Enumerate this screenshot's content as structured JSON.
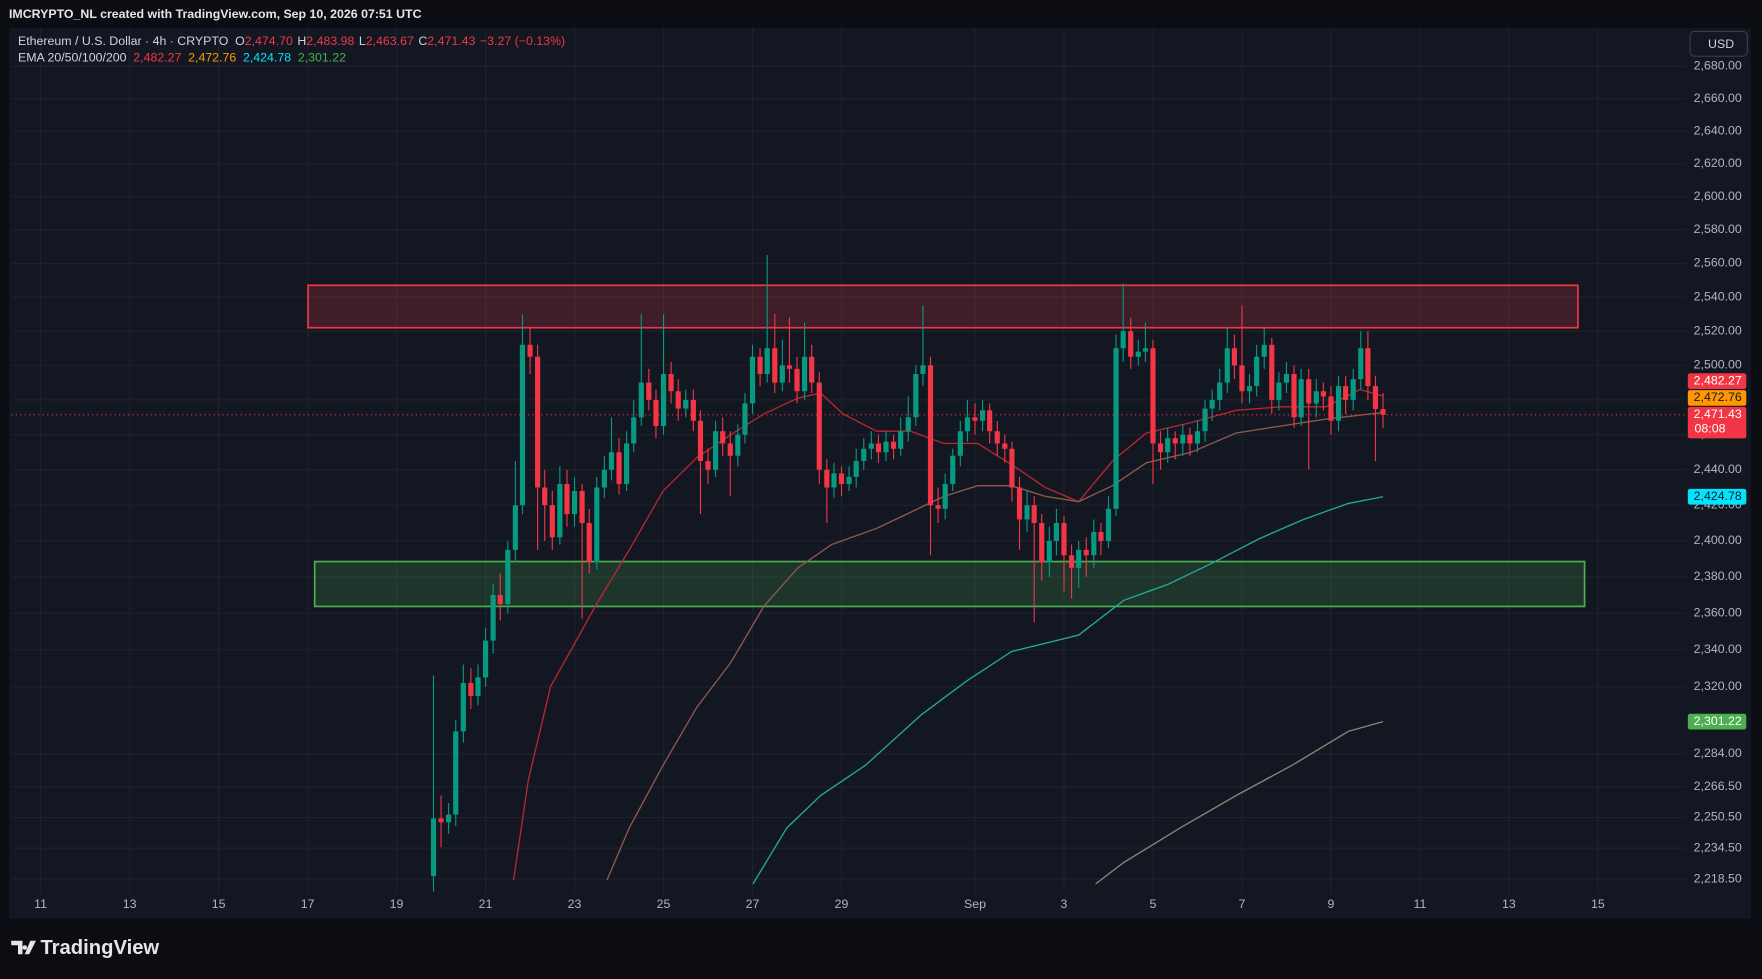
{
  "chart_data": {
    "type": "candlestick",
    "title": "IMCRYPTO_NL created with TradingView.com, Sep 10, 2026 07:51 UTC",
    "symbol": "Ethereum / U.S. Dollar · 4h · CRYPTO",
    "ohlc_letters": [
      "O",
      "H",
      "L",
      "C"
    ],
    "ohlc_labels": [
      "2,474.70",
      "2,483.98",
      "2,463.67",
      "2,471.43"
    ],
    "change_label": "−3.27 (−0.13%)",
    "ema_legend": "EMA 20/50/100/200",
    "currency": "USD",
    "brand": "TradingView",
    "last_price_label": "2,471.43",
    "countdown": "08:08",
    "up_color": "#089981",
    "down_color": "#f23645",
    "log_scale": true,
    "grid": true,
    "xlim": [
      10.34,
      47.97
    ],
    "ylim": [
      2211,
      2704
    ],
    "xticks": [
      11,
      13,
      15,
      17,
      19,
      21,
      23,
      25,
      27,
      29,
      {
        "value": 32,
        "label": "Sep"
      },
      {
        "value": 34,
        "label": "3"
      },
      {
        "value": 36,
        "label": "5"
      },
      {
        "value": 38,
        "label": "7"
      },
      {
        "value": 40,
        "label": "9"
      },
      {
        "value": 42,
        "label": "11"
      },
      {
        "value": 44,
        "label": "13"
      },
      {
        "value": 46,
        "label": "15"
      }
    ],
    "yticks": [
      {
        "value": 2680,
        "label": "2,680.00"
      },
      {
        "value": 2660,
        "label": "2,660.00"
      },
      {
        "value": 2640,
        "label": "2,640.00"
      },
      {
        "value": 2620,
        "label": "2,620.00"
      },
      {
        "value": 2600,
        "label": "2,600.00"
      },
      {
        "value": 2580,
        "label": "2,580.00"
      },
      {
        "value": 2560,
        "label": "2,560.00"
      },
      {
        "value": 2540,
        "label": "2,540.00"
      },
      {
        "value": 2520,
        "label": "2,520.00"
      },
      {
        "value": 2500,
        "label": "2,500.00"
      },
      {
        "value": 2480,
        "label": "2,480.00"
      },
      {
        "value": 2460,
        "label": "2,460.00"
      },
      {
        "value": 2440,
        "label": "2,440.00"
      },
      {
        "value": 2420,
        "label": "2,420.00"
      },
      {
        "value": 2400,
        "label": "2,400.00"
      },
      {
        "value": 2380,
        "label": "2,380.00"
      },
      {
        "value": 2360,
        "label": "2,360.00"
      },
      {
        "value": 2340,
        "label": "2,340.00"
      },
      {
        "value": 2320,
        "label": "2,320.00"
      },
      {
        "value": 2284,
        "label": "2,284.00"
      },
      {
        "value": 2266.5,
        "label": "2,266.50"
      },
      {
        "value": 2250.5,
        "label": "2,250.50"
      },
      {
        "value": 2234.5,
        "label": "2,234.50"
      },
      {
        "value": 2218.5,
        "label": "2,218.50"
      }
    ],
    "x": [
      19.83,
      20,
      20.17,
      20.33,
      20.5,
      20.67,
      20.83,
      21,
      21.17,
      21.33,
      21.5,
      21.67,
      21.83,
      22,
      22.17,
      22.33,
      22.5,
      22.67,
      22.83,
      23,
      23.17,
      23.33,
      23.5,
      23.67,
      23.83,
      24,
      24.17,
      24.33,
      24.5,
      24.67,
      24.83,
      25,
      25.17,
      25.33,
      25.5,
      25.67,
      25.83,
      26,
      26.17,
      26.33,
      26.5,
      26.67,
      26.83,
      27,
      27.17,
      27.33,
      27.5,
      27.67,
      27.83,
      28,
      28.17,
      28.33,
      28.5,
      28.67,
      28.83,
      29,
      29.17,
      29.33,
      29.5,
      29.67,
      29.83,
      30,
      30.17,
      30.33,
      30.5,
      30.67,
      30.83,
      31,
      31.17,
      31.33,
      31.5,
      31.67,
      31.83,
      32,
      32.17,
      32.33,
      32.5,
      32.67,
      32.83,
      33,
      33.17,
      33.33,
      33.5,
      33.67,
      33.83,
      34,
      34.17,
      34.33,
      34.5,
      34.67,
      34.83,
      35,
      35.17,
      35.33,
      35.5,
      35.67,
      35.83,
      36,
      36.17,
      36.33,
      36.5,
      36.67,
      36.83,
      37,
      37.17,
      37.33,
      37.5,
      37.67,
      37.83,
      38,
      38.17,
      38.33,
      38.5,
      38.67,
      38.83,
      39,
      39.17,
      39.33,
      39.5,
      39.67,
      39.83,
      40,
      40.17,
      40.33,
      40.5,
      40.67,
      40.83,
      41,
      41.17
    ],
    "open": [
      2220,
      2250,
      2248,
      2252,
      2296,
      2322,
      2315,
      2325,
      2345,
      2370,
      2365,
      2395,
      2420,
      2512,
      2505,
      2430,
      2420,
      2402,
      2432,
      2415,
      2428,
      2410,
      2388,
      2430,
      2440,
      2450,
      2432,
      2455,
      2470,
      2490,
      2480,
      2465,
      2495,
      2485,
      2475,
      2480,
      2468,
      2445,
      2440,
      2462,
      2455,
      2448,
      2460,
      2478,
      2505,
      2495,
      2510,
      2490,
      2500,
      2498,
      2485,
      2505,
      2490,
      2440,
      2430,
      2438,
      2432,
      2436,
      2445,
      2452,
      2455,
      2450,
      2456,
      2452,
      2462,
      2470,
      2495,
      2500,
      2420,
      2418,
      2432,
      2448,
      2462,
      2470,
      2468,
      2474,
      2462,
      2455,
      2452,
      2430,
      2412,
      2420,
      2410,
      2388,
      2400,
      2410,
      2392,
      2385,
      2395,
      2392,
      2405,
      2400,
      2418,
      2510,
      2520,
      2505,
      2508,
      2510,
      2455,
      2450,
      2458,
      2455,
      2460,
      2455,
      2462,
      2475,
      2480,
      2490,
      2510,
      2500,
      2485,
      2488,
      2505,
      2512,
      2480,
      2490,
      2495,
      2470,
      2492,
      2478,
      2485,
      2482,
      2468,
      2488,
      2480,
      2492,
      2510,
      2488,
      2474.7
    ],
    "high": [
      2326,
      2262,
      2258,
      2302,
      2332,
      2330,
      2332,
      2352,
      2376,
      2382,
      2400,
      2445,
      2530,
      2522,
      2512,
      2440,
      2428,
      2442,
      2440,
      2436,
      2432,
      2418,
      2436,
      2448,
      2470,
      2458,
      2462,
      2480,
      2530,
      2498,
      2486,
      2530,
      2502,
      2492,
      2486,
      2486,
      2474,
      2452,
      2468,
      2470,
      2462,
      2466,
      2484,
      2512,
      2510,
      2565,
      2530,
      2515,
      2528,
      2505,
      2525,
      2512,
      2496,
      2446,
      2444,
      2442,
      2442,
      2452,
      2458,
      2462,
      2460,
      2462,
      2460,
      2470,
      2482,
      2500,
      2535,
      2505,
      2430,
      2438,
      2452,
      2468,
      2480,
      2478,
      2480,
      2478,
      2468,
      2460,
      2456,
      2436,
      2428,
      2425,
      2415,
      2408,
      2418,
      2414,
      2398,
      2400,
      2402,
      2412,
      2410,
      2425,
      2518,
      2548,
      2528,
      2515,
      2525,
      2515,
      2462,
      2464,
      2462,
      2466,
      2464,
      2468,
      2480,
      2486,
      2498,
      2522,
      2518,
      2535,
      2495,
      2512,
      2522,
      2516,
      2496,
      2502,
      2500,
      2498,
      2498,
      2492,
      2490,
      2488,
      2494,
      2494,
      2498,
      2520,
      2520,
      2494,
      2483.98
    ],
    "low": [
      2212,
      2235,
      2242,
      2246,
      2290,
      2308,
      2310,
      2320,
      2338,
      2356,
      2360,
      2388,
      2415,
      2495,
      2395,
      2400,
      2395,
      2398,
      2408,
      2408,
      2357,
      2382,
      2384,
      2424,
      2434,
      2426,
      2428,
      2450,
      2465,
      2474,
      2458,
      2460,
      2478,
      2468,
      2470,
      2462,
      2415,
      2432,
      2436,
      2448,
      2425,
      2442,
      2455,
      2472,
      2488,
      2490,
      2484,
      2485,
      2490,
      2478,
      2480,
      2484,
      2432,
      2410,
      2424,
      2425,
      2428,
      2430,
      2440,
      2446,
      2444,
      2445,
      2446,
      2448,
      2456,
      2465,
      2488,
      2392,
      2410,
      2412,
      2428,
      2442,
      2456,
      2460,
      2462,
      2455,
      2448,
      2444,
      2422,
      2395,
      2405,
      2355,
      2378,
      2380,
      2392,
      2372,
      2368,
      2374,
      2380,
      2385,
      2392,
      2396,
      2414,
      2502,
      2498,
      2500,
      2502,
      2432,
      2440,
      2444,
      2446,
      2448,
      2448,
      2450,
      2456,
      2468,
      2474,
      2484,
      2492,
      2478,
      2478,
      2482,
      2498,
      2472,
      2474,
      2484,
      2464,
      2465,
      2440,
      2470,
      2474,
      2460,
      2462,
      2472,
      2474,
      2486,
      2480,
      2445,
      2463.67
    ],
    "close": [
      2250,
      2248,
      2252,
      2296,
      2322,
      2315,
      2325,
      2345,
      2370,
      2365,
      2395,
      2420,
      2512,
      2505,
      2430,
      2420,
      2402,
      2432,
      2415,
      2428,
      2410,
      2388,
      2430,
      2440,
      2450,
      2432,
      2455,
      2470,
      2490,
      2480,
      2465,
      2495,
      2485,
      2475,
      2480,
      2468,
      2445,
      2440,
      2462,
      2455,
      2448,
      2460,
      2478,
      2505,
      2495,
      2510,
      2490,
      2500,
      2498,
      2485,
      2505,
      2490,
      2440,
      2430,
      2438,
      2432,
      2436,
      2445,
      2452,
      2455,
      2450,
      2456,
      2452,
      2462,
      2470,
      2495,
      2500,
      2420,
      2418,
      2432,
      2448,
      2462,
      2470,
      2468,
      2474,
      2462,
      2455,
      2452,
      2430,
      2412,
      2420,
      2410,
      2388,
      2400,
      2410,
      2392,
      2385,
      2395,
      2392,
      2405,
      2400,
      2418,
      2510,
      2520,
      2505,
      2508,
      2510,
      2455,
      2450,
      2458,
      2455,
      2460,
      2455,
      2462,
      2475,
      2480,
      2490,
      2510,
      2500,
      2485,
      2488,
      2505,
      2512,
      2480,
      2490,
      2495,
      2470,
      2492,
      2478,
      2485,
      2482,
      2468,
      2488,
      2480,
      2492,
      2510,
      2488,
      2474.7,
      2471.43
    ],
    "series": [
      {
        "color": "#b7262f",
        "label_color": "#f23645",
        "last_label": "2,482.27",
        "x": [
          21.63,
          21.96,
          22.46,
          22.97,
          23.47,
          24.23,
          24.99,
          25.75,
          26.51,
          27.26,
          28.02,
          28.53,
          29.03,
          29.79,
          30.55,
          31.3,
          32.06,
          32.82,
          33.58,
          34.33,
          35.09,
          35.85,
          36.86,
          37.87,
          38.88,
          39.89,
          40.65,
          41.17
        ],
        "values": [
          2218,
          2270,
          2320,
          2342,
          2364,
          2395,
          2428,
          2447,
          2460,
          2472,
          2481,
          2484,
          2472,
          2462,
          2462,
          2455,
          2455,
          2443,
          2430,
          2422,
          2445,
          2461,
          2467,
          2474,
          2476,
          2476,
          2486,
          2482.27
        ]
      },
      {
        "color": "#8d5a4c",
        "label_color": "#ff9800",
        "last_label": "2,472.76",
        "x": [
          23.73,
          24.23,
          24.99,
          25.75,
          26.51,
          27.26,
          28.02,
          28.78,
          29.79,
          30.55,
          31.3,
          32.06,
          32.82,
          33.58,
          34.33,
          35.09,
          35.85,
          36.86,
          37.87,
          38.88,
          39.89,
          41.17
        ],
        "values": [
          2218,
          2245,
          2278,
          2309,
          2333,
          2364,
          2385,
          2398,
          2407,
          2416,
          2425,
          2431,
          2431,
          2425,
          2422,
          2431,
          2444,
          2450,
          2461,
          2465,
          2469,
          2472.76
        ]
      },
      {
        "color": "#26a69a",
        "label_color": "#00e5ff",
        "last_label": "2,424.78",
        "x": [
          27.01,
          27.77,
          28.53,
          29.54,
          30.8,
          31.81,
          32.82,
          34.33,
          35.34,
          36.35,
          37.36,
          38.37,
          39.38,
          40.39,
          41.17
        ],
        "values": [
          2216,
          2245,
          2262,
          2278,
          2305,
          2323,
          2339,
          2348,
          2367,
          2376,
          2388,
          2401,
          2412,
          2421,
          2424.78
        ]
      },
      {
        "color": "#8a8473",
        "label_color": "#4caf50",
        "last_label": "2,301.22",
        "x": [
          34.71,
          35.34,
          36.61,
          37.87,
          39.13,
          40.39,
          41.17
        ],
        "values": [
          2216,
          2227,
          2245,
          2262,
          2278,
          2296,
          2301.22
        ]
      }
    ],
    "zones": [
      {
        "xlim": [
          17.01,
          45.55
        ],
        "ylim": [
          2522,
          2547
        ],
        "color": "#f23645"
      },
      {
        "xlim": [
          17.16,
          45.7
        ],
        "ylim": [
          2363.7,
          2388.5
        ],
        "color": "#4caf50"
      }
    ]
  }
}
